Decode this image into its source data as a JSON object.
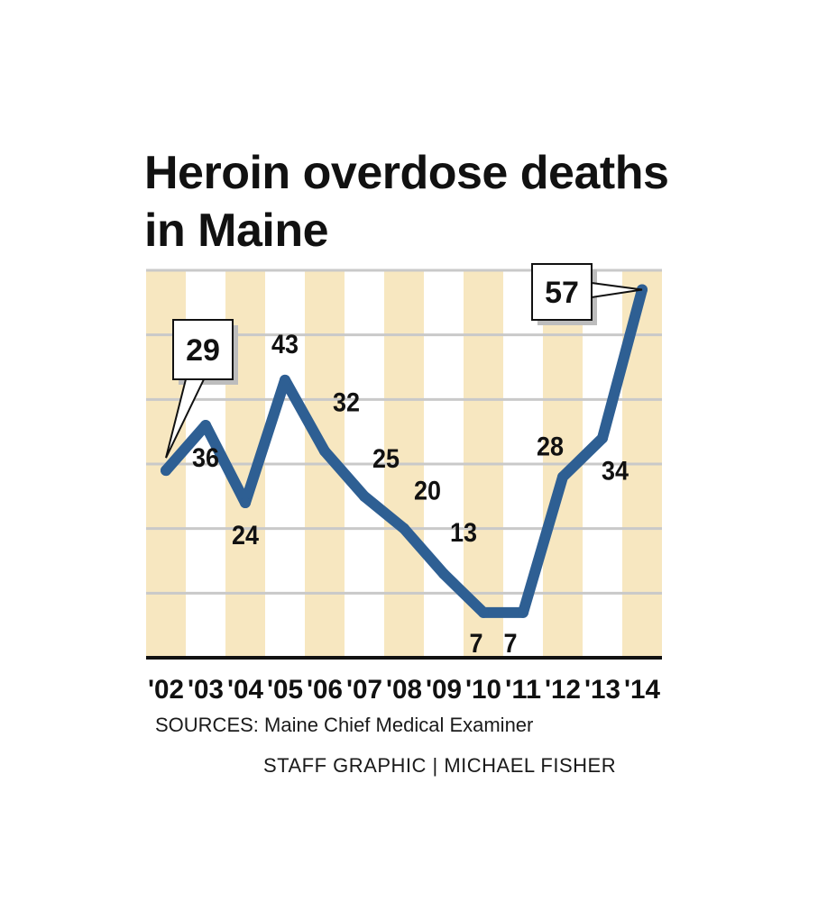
{
  "chart_data": {
    "type": "line",
    "title": "Heroin overdose deaths in Maine",
    "categories": [
      "'02",
      "'03",
      "'04",
      "'05",
      "'06",
      "'07",
      "'08",
      "'09",
      "'10",
      "'11",
      "'12",
      "'13",
      "'14"
    ],
    "values": [
      29,
      36,
      24,
      43,
      32,
      25,
      20,
      13,
      7,
      7,
      28,
      34,
      57
    ],
    "ylim": [
      0,
      60
    ],
    "grid": true,
    "callouts": [
      "29",
      "57"
    ],
    "colors": {
      "line": "#2e5f93",
      "band": "#f7e7c0",
      "grid": "#c9c9c9",
      "axis": "#111111"
    }
  },
  "footer": {
    "sources": "SOURCES: Maine Chief Medical Examiner",
    "credit": "STAFF GRAPHIC | MICHAEL FISHER"
  }
}
